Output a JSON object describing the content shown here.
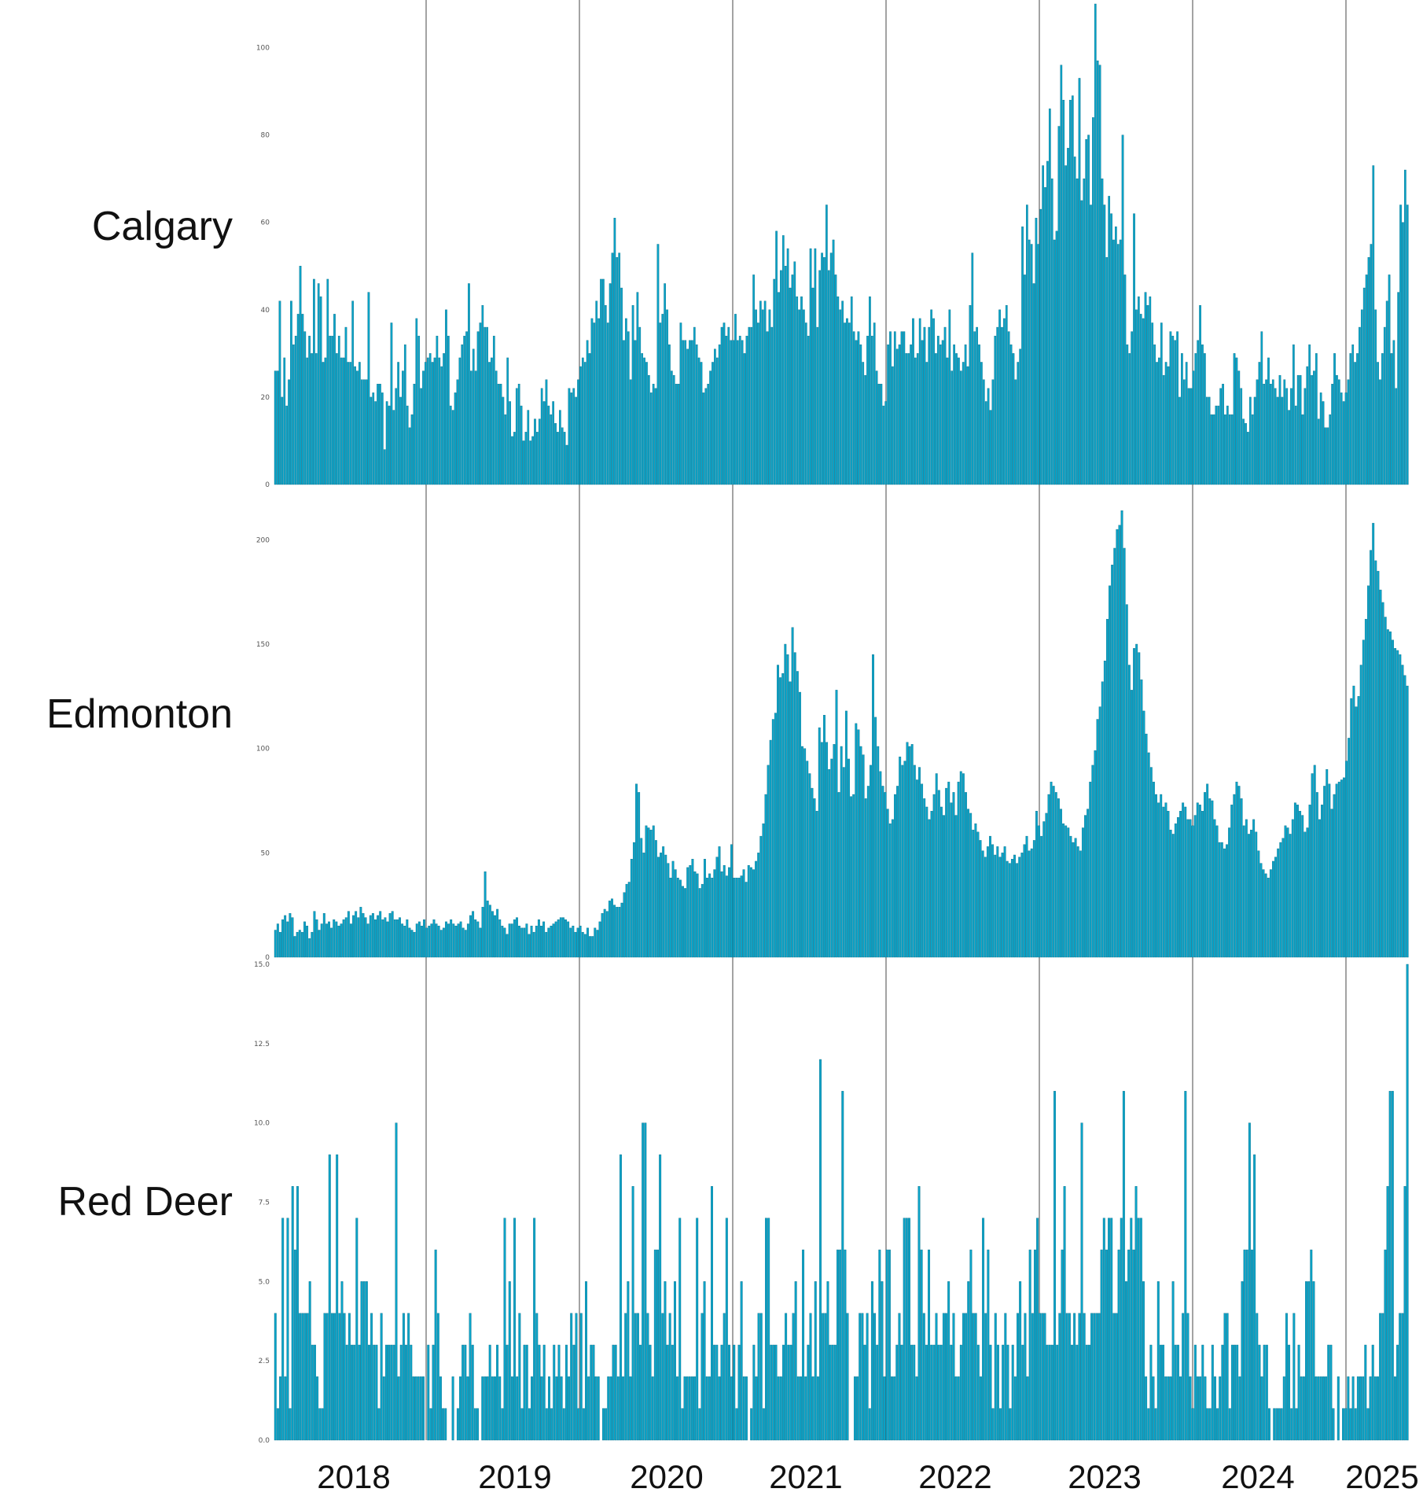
{
  "colors": {
    "bar": "#0aa3c7",
    "bar_edge": "#0a6f8a",
    "divider": "#666666",
    "text": "#111111",
    "tick": "#555555"
  },
  "years": [
    "2018",
    "2019",
    "2020",
    "2021",
    "2022",
    "2023",
    "2024",
    "2025"
  ],
  "chart_data": [
    {
      "type": "bar",
      "name": "Calgary",
      "ylim": [
        0,
        110
      ],
      "yticks": [
        0,
        20,
        40,
        60,
        80,
        100
      ],
      "ytick_labels": [
        "0",
        "20",
        "40",
        "60",
        "80",
        "100"
      ],
      "values": [
        26,
        26,
        42,
        20,
        29,
        18,
        24,
        42,
        32,
        34,
        39,
        50,
        39,
        35,
        29,
        34,
        30,
        47,
        30,
        46,
        43,
        28,
        29,
        47,
        34,
        34,
        39,
        30,
        34,
        29,
        29,
        36,
        28,
        28,
        42,
        27,
        26,
        28,
        24,
        24,
        24,
        44,
        20,
        21,
        19,
        23,
        23,
        21,
        8,
        19,
        18,
        37,
        17,
        22,
        28,
        20,
        26,
        32,
        18,
        13,
        16,
        23,
        38,
        34,
        22,
        26,
        28,
        29,
        30,
        28,
        29,
        34,
        29,
        27,
        30,
        40,
        34,
        18,
        17,
        21,
        24,
        29,
        32,
        34,
        35,
        46,
        26,
        31,
        26,
        35,
        37,
        41,
        36,
        36,
        28,
        29,
        34,
        26,
        23,
        23,
        20,
        16,
        29,
        19,
        11,
        12,
        22,
        23,
        18,
        10,
        12,
        17,
        10,
        11,
        15,
        12,
        15,
        22,
        19,
        24,
        18,
        16,
        19,
        14,
        12,
        17,
        13,
        12,
        9,
        22,
        21,
        22,
        20,
        24,
        27,
        29,
        28,
        33,
        30,
        38,
        37,
        42,
        38,
        47,
        47,
        41,
        37,
        46,
        53,
        61,
        52,
        53,
        45,
        33,
        38,
        35,
        24,
        41,
        33,
        44,
        36,
        30,
        29,
        28,
        25,
        21,
        23,
        22,
        55,
        37,
        39,
        46,
        40,
        32,
        26,
        25,
        23,
        23,
        37,
        33,
        33,
        31,
        33,
        33,
        36,
        32,
        29,
        28,
        21,
        22,
        23,
        26,
        28,
        31,
        29,
        32,
        36,
        37,
        34,
        36,
        33,
        33,
        39,
        33,
        34,
        33,
        30,
        34,
        36,
        36,
        48,
        40,
        37,
        42,
        40,
        42,
        35,
        40,
        36,
        47,
        58,
        44,
        49,
        57,
        50,
        54,
        45,
        48,
        51,
        43,
        40,
        43,
        40,
        37,
        34,
        54,
        45,
        54,
        36,
        49,
        53,
        52,
        64,
        49,
        53,
        56,
        48,
        43,
        40,
        42,
        37,
        38,
        37,
        43,
        35,
        33,
        35,
        32,
        28,
        25,
        34,
        43,
        34,
        37,
        26,
        23,
        23,
        18,
        19,
        32,
        35,
        27,
        35,
        31,
        32,
        35,
        35,
        30,
        30,
        32,
        38,
        29,
        30,
        38,
        33,
        36,
        28,
        36,
        40,
        38,
        30,
        34,
        32,
        33,
        36,
        29,
        40,
        26,
        32,
        30,
        29,
        26,
        28,
        32,
        27,
        41,
        53,
        35,
        36,
        32,
        28,
        24,
        19,
        22,
        17,
        24,
        34,
        36,
        40,
        36,
        38,
        41,
        35,
        32,
        30,
        24,
        28,
        31,
        59,
        48,
        64,
        56,
        55,
        46,
        61,
        55,
        63,
        73,
        68,
        74,
        86,
        70,
        56,
        58,
        82,
        96,
        88,
        73,
        77,
        88,
        89,
        75,
        70,
        93,
        65,
        70,
        79,
        80,
        64,
        84,
        110,
        97,
        96,
        70,
        64,
        52,
        66,
        62,
        56,
        59,
        55,
        56,
        80,
        48,
        32,
        30,
        35,
        62,
        40,
        43,
        39,
        38,
        44,
        41,
        43,
        37,
        32,
        28,
        29,
        37,
        25,
        28,
        27,
        35,
        34,
        33,
        35,
        20,
        30,
        24,
        28,
        22,
        22,
        26,
        30,
        33,
        41,
        32,
        30,
        20,
        20,
        16,
        16,
        18,
        18,
        22,
        23,
        16,
        18,
        16,
        16,
        30,
        29,
        26,
        22,
        15,
        14,
        12,
        20,
        16,
        20,
        24,
        28,
        35,
        23,
        24,
        29,
        23,
        24,
        22,
        20,
        25,
        20,
        24,
        22,
        17,
        22,
        32,
        18,
        25,
        25,
        16,
        22,
        27,
        32,
        25,
        26,
        30,
        15,
        21,
        19,
        13,
        13,
        16,
        23,
        30,
        25,
        24,
        21,
        19,
        21,
        24,
        30,
        32,
        28,
        30,
        36,
        40,
        45,
        48,
        52,
        55,
        73,
        40,
        28,
        24,
        30,
        36,
        42,
        48,
        30,
        33,
        22,
        44,
        64,
        60,
        72,
        64
      ]
    },
    {
      "type": "bar",
      "name": "Edmonton",
      "ylim": [
        0,
        225
      ],
      "yticks": [
        0,
        50,
        100,
        150,
        200
      ],
      "ytick_labels": [
        "0",
        "50",
        "100",
        "150",
        "200"
      ],
      "values": [
        13,
        16,
        12,
        18,
        20,
        17,
        21,
        19,
        10,
        12,
        13,
        12,
        17,
        15,
        9,
        12,
        22,
        18,
        13,
        16,
        21,
        16,
        17,
        14,
        18,
        17,
        15,
        16,
        18,
        19,
        22,
        16,
        20,
        22,
        19,
        24,
        21,
        19,
        16,
        20,
        21,
        18,
        20,
        22,
        18,
        19,
        17,
        21,
        22,
        18,
        18,
        19,
        16,
        15,
        18,
        14,
        13,
        12,
        16,
        17,
        15,
        18,
        14,
        15,
        16,
        18,
        16,
        15,
        13,
        14,
        17,
        16,
        18,
        16,
        15,
        16,
        17,
        14,
        13,
        16,
        20,
        22,
        18,
        17,
        14,
        24,
        41,
        27,
        25,
        22,
        20,
        23,
        18,
        15,
        14,
        11,
        16,
        16,
        18,
        19,
        15,
        14,
        14,
        16,
        11,
        15,
        12,
        15,
        18,
        15,
        17,
        12,
        14,
        15,
        16,
        17,
        18,
        19,
        19,
        18,
        17,
        14,
        15,
        12,
        14,
        15,
        12,
        11,
        14,
        10,
        10,
        14,
        13,
        17,
        21,
        23,
        22,
        27,
        28,
        25,
        24,
        24,
        26,
        31,
        35,
        36,
        47,
        55,
        83,
        79,
        57,
        50,
        63,
        62,
        61,
        63,
        56,
        48,
        50,
        53,
        49,
        45,
        38,
        46,
        42,
        38,
        37,
        34,
        33,
        43,
        44,
        47,
        41,
        40,
        33,
        35,
        47,
        38,
        40,
        38,
        42,
        48,
        53,
        41,
        44,
        39,
        43,
        54,
        38,
        38,
        38,
        39,
        42,
        36,
        44,
        43,
        42,
        46,
        50,
        58,
        64,
        78,
        92,
        104,
        114,
        117,
        140,
        134,
        136,
        150,
        145,
        132,
        158,
        146,
        137,
        127,
        101,
        100,
        94,
        88,
        81,
        76,
        70,
        110,
        103,
        116,
        103,
        90,
        95,
        102,
        128,
        79,
        101,
        91,
        118,
        95,
        77,
        78,
        112,
        109,
        101,
        97,
        76,
        82,
        92,
        145,
        115,
        101,
        89,
        82,
        79,
        71,
        64,
        66,
        78,
        82,
        96,
        92,
        94,
        103,
        101,
        102,
        92,
        85,
        91,
        83,
        76,
        72,
        66,
        70,
        78,
        88,
        80,
        72,
        68,
        81,
        84,
        74,
        79,
        68,
        84,
        89,
        88,
        79,
        71,
        69,
        61,
        64,
        60,
        56,
        51,
        48,
        53,
        58,
        54,
        49,
        53,
        48,
        50,
        53,
        46,
        45,
        47,
        49,
        45,
        48,
        50,
        54,
        58,
        51,
        52,
        56,
        70,
        63,
        58,
        65,
        69,
        78,
        84,
        82,
        79,
        76,
        71,
        64,
        63,
        62,
        58,
        55,
        57,
        53,
        51,
        62,
        68,
        71,
        84,
        92,
        99,
        114,
        120,
        132,
        142,
        162,
        178,
        188,
        196,
        205,
        207,
        214,
        196,
        169,
        140,
        128,
        148,
        150,
        146,
        133,
        118,
        107,
        98,
        91,
        84,
        78,
        74,
        78,
        72,
        74,
        70,
        61,
        59,
        64,
        67,
        70,
        74,
        72,
        66,
        66,
        63,
        68,
        74,
        73,
        70,
        79,
        83,
        76,
        75,
        66,
        63,
        55,
        55,
        52,
        54,
        62,
        73,
        78,
        84,
        82,
        76,
        63,
        66,
        59,
        61,
        66,
        60,
        51,
        45,
        42,
        40,
        38,
        42,
        46,
        48,
        52,
        55,
        57,
        63,
        62,
        59,
        66,
        74,
        73,
        70,
        68,
        60,
        62,
        73,
        88,
        92,
        79,
        66,
        73,
        82,
        90,
        83,
        71,
        78,
        83,
        84,
        85,
        86,
        94,
        105,
        124,
        130,
        120,
        125,
        140,
        152,
        162,
        178,
        195,
        208,
        190,
        185,
        176,
        170,
        163,
        157,
        156,
        152,
        148,
        147,
        145,
        140,
        135,
        130
      ]
    },
    {
      "type": "bar",
      "name": "Red Deer",
      "ylim": [
        0,
        15
      ],
      "yticks": [
        0,
        2.5,
        5,
        7.5,
        10,
        12.5,
        15
      ],
      "ytick_labels": [
        "0.0",
        "2.5",
        "5.0",
        "7.5",
        "10.0",
        "12.5",
        "15.0"
      ],
      "values": [
        4,
        1,
        2,
        7,
        2,
        7,
        1,
        8,
        6,
        8,
        4,
        4,
        4,
        4,
        5,
        3,
        3,
        2,
        1,
        1,
        4,
        4,
        9,
        4,
        4,
        9,
        4,
        5,
        4,
        3,
        4,
        3,
        3,
        7,
        3,
        5,
        5,
        5,
        3,
        4,
        3,
        3,
        1,
        4,
        2,
        3,
        3,
        3,
        3,
        10,
        2,
        3,
        4,
        3,
        4,
        3,
        2,
        2,
        2,
        2,
        2,
        0,
        3,
        1,
        3,
        6,
        4,
        2,
        1,
        1,
        0,
        0,
        2,
        0,
        1,
        2,
        3,
        3,
        2,
        4,
        3,
        1,
        1,
        0,
        2,
        2,
        2,
        3,
        2,
        2,
        3,
        2,
        1,
        7,
        3,
        5,
        2,
        7,
        2,
        4,
        1,
        3,
        3,
        1,
        2,
        7,
        4,
        3,
        2,
        3,
        1,
        2,
        1,
        3,
        2,
        3,
        2,
        1,
        3,
        2,
        4,
        3,
        4,
        1,
        4,
        1,
        5,
        2,
        3,
        3,
        2,
        2,
        0,
        1,
        1,
        2,
        2,
        3,
        3,
        2,
        9,
        2,
        4,
        5,
        2,
        8,
        4,
        4,
        3,
        10,
        10,
        4,
        3,
        2,
        6,
        6,
        9,
        4,
        5,
        3,
        4,
        3,
        5,
        2,
        7,
        1,
        2,
        2,
        2,
        2,
        2,
        7,
        1,
        4,
        5,
        2,
        2,
        8,
        3,
        3,
        2,
        3,
        4,
        7,
        3,
        2,
        3,
        1,
        3,
        5,
        2,
        2,
        0,
        1,
        3,
        2,
        4,
        4,
        1,
        7,
        7,
        3,
        3,
        3,
        2,
        2,
        3,
        4,
        3,
        3,
        4,
        5,
        2,
        2,
        6,
        2,
        3,
        4,
        2,
        5,
        2,
        12,
        4,
        4,
        5,
        3,
        3,
        3,
        6,
        6,
        11,
        6,
        4,
        0,
        0,
        2,
        2,
        4,
        4,
        3,
        4,
        1,
        5,
        4,
        3,
        6,
        5,
        2,
        6,
        6,
        2,
        2,
        3,
        4,
        3,
        7,
        7,
        7,
        3,
        3,
        2,
        8,
        6,
        4,
        3,
        6,
        3,
        3,
        4,
        3,
        3,
        4,
        4,
        5,
        3,
        4,
        2,
        2,
        3,
        4,
        4,
        5,
        6,
        4,
        4,
        3,
        2,
        7,
        4,
        6,
        3,
        1,
        4,
        3,
        1,
        3,
        4,
        3,
        1,
        3,
        2,
        4,
        5,
        3,
        4,
        2,
        6,
        4,
        6,
        7,
        4,
        4,
        4,
        3,
        3,
        3,
        11,
        3,
        4,
        6,
        8,
        4,
        4,
        3,
        4,
        3,
        4,
        10,
        4,
        3,
        3,
        4,
        4,
        4,
        4,
        6,
        7,
        6,
        7,
        7,
        4,
        4,
        6,
        7,
        11,
        5,
        6,
        7,
        6,
        8,
        7,
        7,
        5,
        2,
        1,
        3,
        2,
        1,
        5,
        3,
        3,
        2,
        2,
        2,
        5,
        3,
        3,
        2,
        4,
        11,
        4,
        2,
        1,
        3,
        2,
        2,
        3,
        2,
        1,
        1,
        3,
        2,
        1,
        2,
        3,
        4,
        4,
        1,
        3,
        3,
        3,
        2,
        5,
        6,
        6,
        10,
        6,
        9,
        4,
        3,
        2,
        3,
        3,
        1,
        0,
        1,
        1,
        1,
        1,
        2,
        4,
        3,
        1,
        4,
        1,
        3,
        2,
        2,
        5,
        5,
        6,
        5,
        2,
        2,
        2,
        2,
        2,
        3,
        3,
        1,
        0,
        2,
        0,
        1,
        1,
        2,
        1,
        2,
        1,
        2,
        2,
        2,
        3,
        1,
        2,
        3,
        2,
        2,
        4,
        4,
        6,
        8,
        11,
        11,
        2,
        3,
        4,
        4,
        8,
        15
      ]
    }
  ]
}
